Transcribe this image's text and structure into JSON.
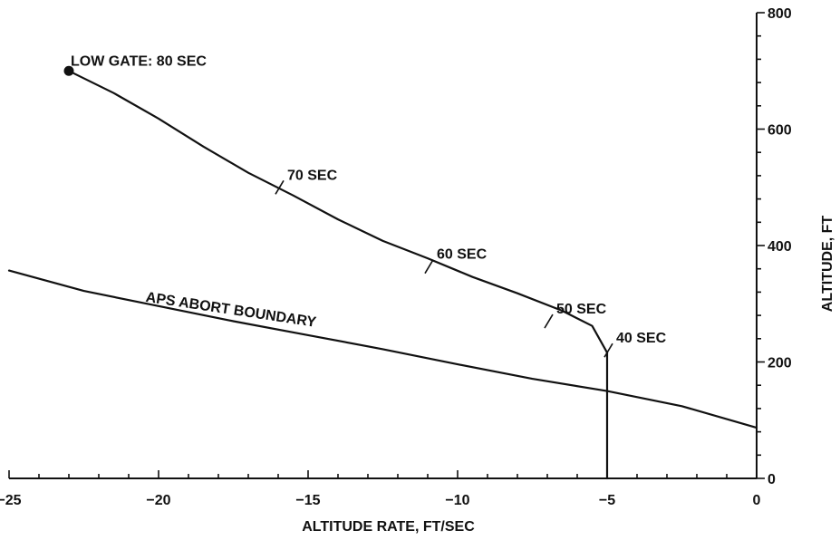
{
  "chart_data": {
    "type": "line",
    "title": "",
    "xlabel": "ALTITUDE RATE, FT/SEC",
    "ylabel": "ALTITUDE, FT",
    "xlim": [
      -25,
      0
    ],
    "ylim": [
      0,
      800
    ],
    "x_ticks": [
      -25,
      -20,
      -15,
      -10,
      -5,
      0
    ],
    "x_tick_labels": [
      "−25",
      "−20",
      "−15",
      "−10",
      "−5",
      "0"
    ],
    "y_ticks": [
      0,
      200,
      400,
      600,
      800
    ],
    "y_tick_labels": [
      "0",
      "200",
      "400",
      "600",
      "800"
    ],
    "grid": false,
    "y_axis_side": "right",
    "series": [
      {
        "name": "",
        "role": "trajectory",
        "x": [
          -23,
          -21.5,
          -20,
          -18.5,
          -17,
          -15.5,
          -14,
          -12.5,
          -11,
          -9.5,
          -8,
          -6.5,
          -5.5,
          -5
        ],
        "y": [
          700,
          662,
          618,
          570,
          525,
          486,
          445,
          408,
          378,
          346,
          318,
          288,
          262,
          216
        ]
      },
      {
        "name": "APS ABORT BOUNDARY",
        "role": "boundary",
        "x": [
          -25,
          -22.5,
          -20,
          -17.5,
          -15,
          -12.5,
          -10,
          -7.5,
          -5,
          -2.5,
          0
        ],
        "y": [
          357,
          322,
          296,
          270,
          246,
          222,
          196,
          171,
          150,
          124,
          87
        ]
      },
      {
        "name": "",
        "role": "vertical-drop",
        "x": [
          -5,
          -5
        ],
        "y": [
          216,
          0
        ]
      }
    ],
    "start_marker": {
      "x": -23,
      "y": 700
    },
    "time_marks": [
      {
        "label": "LOW GATE:  80 SEC",
        "x": -23,
        "y": 700
      },
      {
        "label": "70 SEC",
        "x": -16,
        "y": 496
      },
      {
        "label": "60 SEC",
        "x": -11,
        "y": 360
      },
      {
        "label": "50 SEC",
        "x": -7,
        "y": 266
      },
      {
        "label": "40 SEC",
        "x": -5,
        "y": 216
      }
    ]
  }
}
